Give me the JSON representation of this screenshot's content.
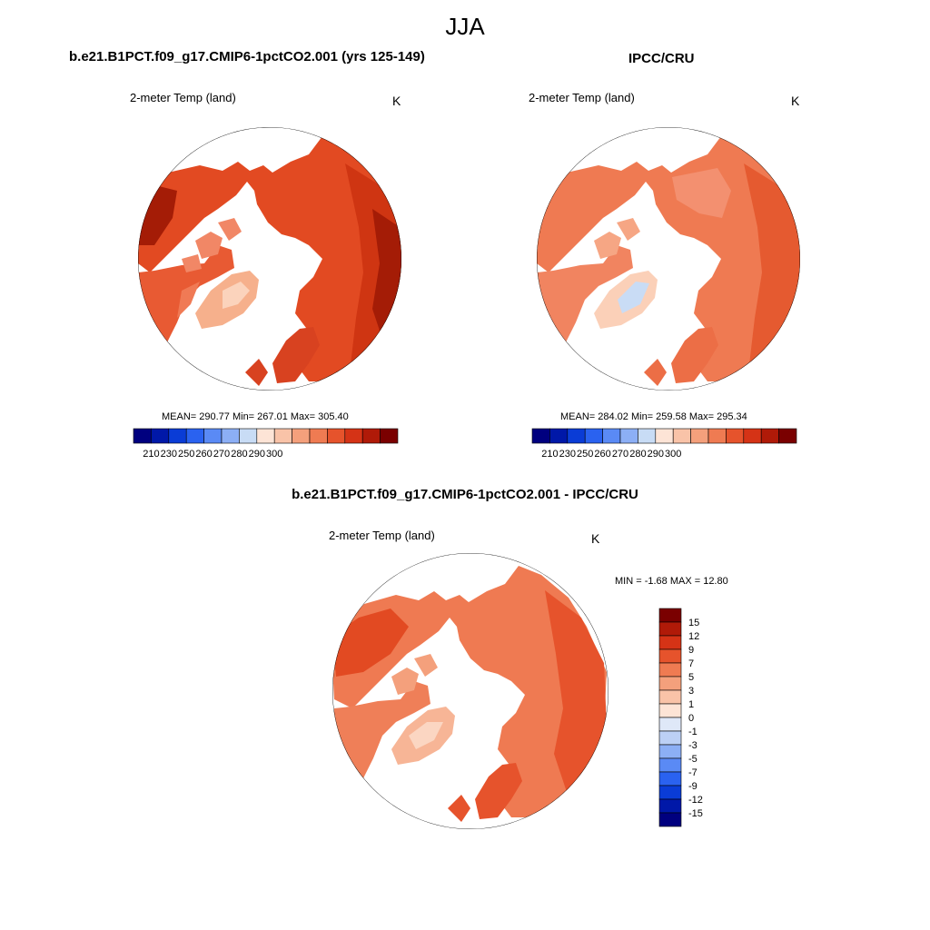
{
  "figure": {
    "title": "JJA"
  },
  "panels": [
    {
      "title": "b.e21.B1PCT.f09_g17.CMIP6-1pctCO2.001 (yrs 125-149)",
      "variable": "2-meter Temp (land)",
      "units": "K",
      "stats": "MEAN= 290.77  Min= 267.01  Max= 305.40",
      "palette": "warm"
    },
    {
      "title": "IPCC/CRU",
      "variable": "2-meter Temp (land)",
      "units": "K",
      "stats": "MEAN= 284.02  Min= 259.58  Max= 295.34",
      "palette": "cool-warm"
    },
    {
      "title": "b.e21.B1PCT.f09_g17.CMIP6-1pctCO2.001 - IPCC/CRU",
      "variable": "2-meter Temp (land)",
      "units": "K",
      "stats": "MIN =  -1.68 MAX =  12.80",
      "palette": "diff"
    }
  ],
  "abs_colorbar": {
    "labels": [
      "210",
      "230",
      "250",
      "260",
      "270",
      "280",
      "290",
      "300"
    ],
    "colors": [
      "#00007f",
      "#0018a8",
      "#0a3cd6",
      "#2a62f0",
      "#5a8af5",
      "#8caff5",
      "#c8dcf5",
      "#fde4d6",
      "#f9c3a8",
      "#f4a07c",
      "#ef7b52",
      "#e6532c",
      "#d53316",
      "#b01a08",
      "#7a0000"
    ]
  },
  "diff_colorbar": {
    "labels": [
      "15",
      "12",
      "9",
      "7",
      "5",
      "3",
      "1",
      "0",
      "-1",
      "-3",
      "-5",
      "-7",
      "-9",
      "-12",
      "-15"
    ],
    "colors": [
      "#7a0000",
      "#b01a08",
      "#d53316",
      "#e6532c",
      "#ef7b52",
      "#f4a07c",
      "#f9c3a8",
      "#fde4d6",
      "#dfe8f8",
      "#bcd0f5",
      "#8caff5",
      "#5a8af5",
      "#2a62f0",
      "#0a3cd6",
      "#0018a8",
      "#00007f"
    ]
  },
  "chart_data": [
    {
      "type": "heatmap",
      "title": "b.e21.B1PCT.f09_g17.CMIP6-1pctCO2.001 (yrs 125-149)",
      "variable": "2-meter Temp (land)",
      "units": "K",
      "projection": "north polar stereographic",
      "mean": 290.77,
      "min": 267.01,
      "max": 305.4,
      "colorbar_levels": [
        210,
        230,
        250,
        260,
        270,
        280,
        290,
        300
      ]
    },
    {
      "type": "heatmap",
      "title": "IPCC/CRU",
      "variable": "2-meter Temp (land)",
      "units": "K",
      "projection": "north polar stereographic",
      "mean": 284.02,
      "min": 259.58,
      "max": 295.34,
      "colorbar_levels": [
        210,
        230,
        250,
        260,
        270,
        280,
        290,
        300
      ]
    },
    {
      "type": "heatmap",
      "title": "b.e21.B1PCT.f09_g17.CMIP6-1pctCO2.001 - IPCC/CRU",
      "variable": "2-meter Temp (land)",
      "units": "K",
      "projection": "north polar stereographic",
      "min": -1.68,
      "max": 12.8,
      "colorbar_levels": [
        -15,
        -12,
        -9,
        -7,
        -5,
        -3,
        -1,
        0,
        1,
        3,
        5,
        7,
        9,
        12,
        15
      ]
    }
  ]
}
